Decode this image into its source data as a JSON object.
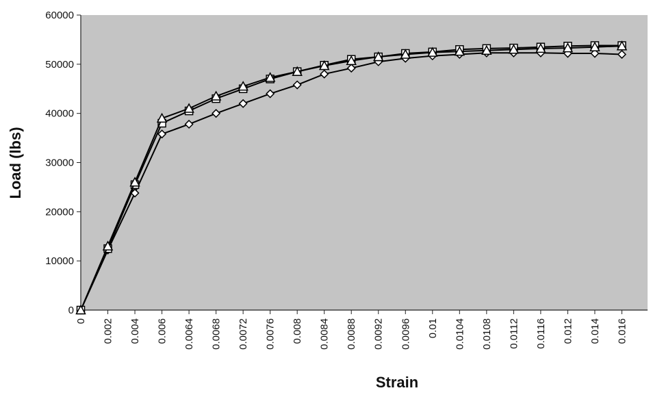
{
  "chart_data": {
    "type": "line",
    "xlabel": "Strain",
    "ylabel": "Load (lbs)",
    "categories": [
      "0",
      "0.002",
      "0.004",
      "0.006",
      "0.0064",
      "0.0068",
      "0.0072",
      "0.0076",
      "0.008",
      "0.0084",
      "0.0088",
      "0.0092",
      "0.0096",
      "0.01",
      "0.0104",
      "0.0108",
      "0.0112",
      "0.0116",
      "0.012",
      "0.014",
      "0.016"
    ],
    "series": [
      {
        "color": "#000000",
        "marker": "diamond",
        "values": [
          0,
          12200,
          23800,
          35800,
          37800,
          40000,
          42000,
          44000,
          45800,
          48000,
          49200,
          50500,
          51200,
          51700,
          52000,
          52300,
          52300,
          52300,
          52200,
          52200,
          52000
        ]
      },
      {
        "color": "#000000",
        "marker": "square",
        "values": [
          0,
          12500,
          25500,
          38000,
          40500,
          43000,
          45000,
          47000,
          48500,
          49800,
          51000,
          51500,
          52200,
          52500,
          53000,
          53200,
          53300,
          53500,
          53700,
          53800,
          53800
        ]
      },
      {
        "color": "#000000",
        "marker": "triangle",
        "values": [
          0,
          13000,
          26000,
          39000,
          41000,
          43500,
          45500,
          47300,
          48500,
          49700,
          50700,
          51500,
          52000,
          52400,
          52600,
          52800,
          53000,
          53200,
          53300,
          53500,
          53700
        ]
      }
    ],
    "ylim": [
      0,
      60000
    ],
    "yticks": [
      0,
      10000,
      20000,
      30000,
      40000,
      50000,
      60000
    ],
    "plot_background": "#c4c4c4"
  }
}
